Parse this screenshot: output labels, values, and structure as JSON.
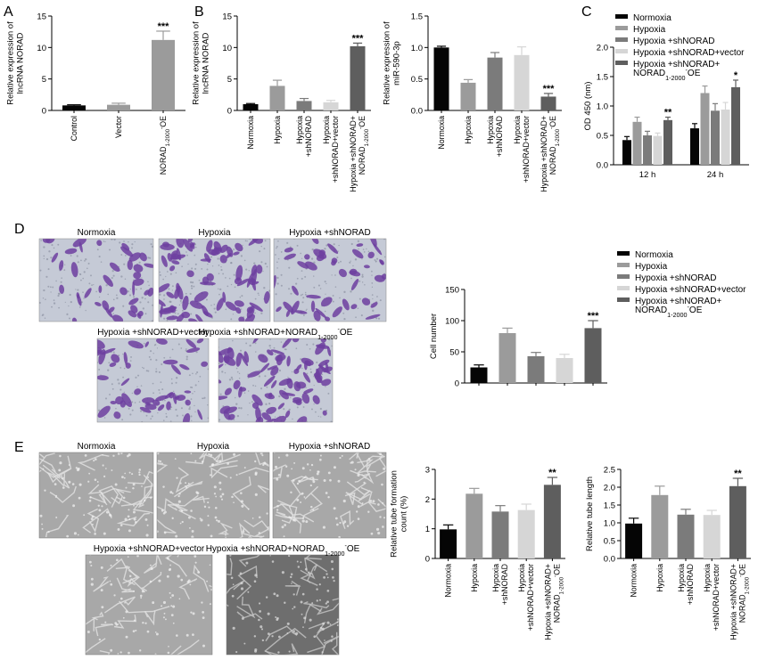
{
  "panels": {
    "A": "A",
    "B": "B",
    "C": "C",
    "D": "D",
    "E": "E"
  },
  "colors": {
    "normoxia": "#050505",
    "hypoxia": "#9b9b9b",
    "shnorad": "#7b7b7b",
    "shvector": "#d6d6d6",
    "oe": "#5e5e5e",
    "crystal_violet": "#6d3fa0",
    "membrane_bg": "#c5cad6",
    "tube_bg": "#a8a8a8"
  },
  "images": {
    "d": [
      "Normoxia",
      "Hypoxia",
      "Hypoxia +shNORAD",
      "Hypoxia +shNORAD+vector",
      "Hypoxia +shNORAD+NORAD1-2000-OE"
    ],
    "e": [
      "Normoxia",
      "Hypoxia",
      "Hypoxia +shNORAD",
      "Hypoxia +shNORAD+vector",
      "Hypoxia +shNORAD+NORAD1-2000-OE"
    ]
  },
  "legend": {
    "entries": [
      "Normoxia",
      "Hypoxia",
      "Hypoxia +shNORAD",
      "Hypoxia +shNORAD+vector",
      "Hypoxia +shNORAD+"
    ],
    "entry_line2": "NORAD1-2000-OE"
  },
  "chart_data": [
    {
      "id": "A",
      "type": "bar",
      "ylabel": [
        "Relative expression of",
        "lncRNA NORAD"
      ],
      "ylim": [
        0,
        15
      ],
      "yticks": [
        0,
        5,
        10,
        15
      ],
      "categories": [
        "Control",
        "Vector",
        "NORAD1-2000-OE"
      ],
      "values": [
        0.8,
        0.9,
        11.2
      ],
      "errors": [
        0.1,
        0.25,
        1.4
      ],
      "significance": [
        "",
        "",
        "***"
      ],
      "color_keys": [
        "normoxia",
        "hypoxia",
        "hypoxia"
      ]
    },
    {
      "id": "B1",
      "type": "bar",
      "ylabel": [
        "Relative expression of",
        "lncRNA NORAD"
      ],
      "ylim": [
        0,
        15
      ],
      "yticks": [
        0,
        5,
        10,
        15
      ],
      "categories": [
        "Normoxia",
        "Hypoxia",
        "Hypoxia +shNORAD",
        "Hypoxia +shNORAD+vector",
        "Hypoxia +shNORAD+ NORAD1-2000-OE"
      ],
      "values": [
        1.0,
        3.9,
        1.5,
        1.3,
        10.2
      ],
      "errors": [
        0.1,
        0.9,
        0.4,
        0.3,
        0.5
      ],
      "significance": [
        "",
        "",
        "",
        "",
        "***"
      ],
      "color_keys": [
        "normoxia",
        "hypoxia",
        "shnorad",
        "shvector",
        "oe"
      ]
    },
    {
      "id": "B2",
      "type": "bar",
      "ylabel": [
        "Relative expression of",
        "miR-590-3p"
      ],
      "ylim": [
        0,
        1.5
      ],
      "yticks": [
        "0.0",
        "0.5",
        "1.0",
        "1.5"
      ],
      "categories": [
        "Normoxia",
        "Hypoxia",
        "Hypoxia +shNORAD",
        "Hypoxia +shNORAD+vector",
        "Hypoxia +shNORAD+ NORAD1-2000-OE"
      ],
      "values": [
        1.0,
        0.44,
        0.84,
        0.88,
        0.22
      ],
      "errors": [
        0.02,
        0.05,
        0.08,
        0.13,
        0.05
      ],
      "significance": [
        "",
        "",
        "",
        "",
        "***"
      ],
      "color_keys": [
        "normoxia",
        "hypoxia",
        "shnorad",
        "shvector",
        "oe"
      ]
    },
    {
      "id": "C",
      "type": "bar",
      "ylabel": "OD 450 (nm)",
      "ylim": [
        0,
        2.0
      ],
      "yticks": [
        "0.0",
        "0.5",
        "1.0",
        "1.5",
        "2.0"
      ],
      "categories": [
        "12 h",
        "24 h"
      ],
      "series": [
        {
          "name": "Normoxia",
          "values": [
            0.42,
            0.62
          ],
          "errors": [
            0.06,
            0.08
          ],
          "significance": [
            "",
            ""
          ],
          "color_key": "normoxia"
        },
        {
          "name": "Hypoxia",
          "values": [
            0.73,
            1.22
          ],
          "errors": [
            0.08,
            0.12
          ],
          "significance": [
            "",
            ""
          ],
          "color_key": "hypoxia"
        },
        {
          "name": "Hypoxia +shNORAD",
          "values": [
            0.5,
            0.92
          ],
          "errors": [
            0.07,
            0.12
          ],
          "significance": [
            "",
            ""
          ],
          "color_key": "shnorad"
        },
        {
          "name": "Hypoxia +shNORAD+vector",
          "values": [
            0.49,
            0.94
          ],
          "errors": [
            0.05,
            0.12
          ],
          "significance": [
            "",
            ""
          ],
          "color_key": "shvector"
        },
        {
          "name": "Hypoxia +shNORAD+ NORAD1-2000-OE",
          "values": [
            0.76,
            1.32
          ],
          "errors": [
            0.05,
            0.12
          ],
          "significance": [
            "**",
            "*"
          ],
          "color_key": "oe"
        }
      ]
    },
    {
      "id": "D",
      "type": "bar",
      "ylabel": "Cell number",
      "ylim": [
        0,
        150
      ],
      "yticks": [
        0,
        50,
        100,
        150
      ],
      "categories": [
        "Normoxia",
        "Hypoxia",
        "Hypoxia +shNORAD",
        "Hypoxia +shNORAD+vector",
        "Hypoxia +shNORAD+ NORAD1-2000-OE"
      ],
      "values": [
        25,
        80,
        43,
        40,
        88
      ],
      "errors": [
        4,
        8,
        6,
        6,
        12
      ],
      "significance": [
        "",
        "",
        "",
        "",
        "***"
      ],
      "color_keys": [
        "normoxia",
        "hypoxia",
        "shnorad",
        "shvector",
        "oe"
      ]
    },
    {
      "id": "E1",
      "type": "bar",
      "ylabel": [
        "Relative tube formation",
        "count (%)"
      ],
      "ylim": [
        0,
        3
      ],
      "yticks": [
        0,
        1,
        2,
        3
      ],
      "categories": [
        "Normoxia",
        "Hypoxia",
        "Hypoxia +shNORAD",
        "Hypoxia +shNORAD+vector",
        "Hypoxia +shNORAD+ NORAD1-2000-OE"
      ],
      "values": [
        0.98,
        2.18,
        1.58,
        1.63,
        2.48
      ],
      "errors": [
        0.15,
        0.18,
        0.2,
        0.2,
        0.25
      ],
      "significance": [
        "",
        "",
        "",
        "",
        "**"
      ],
      "color_keys": [
        "normoxia",
        "hypoxia",
        "shnorad",
        "shvector",
        "oe"
      ]
    },
    {
      "id": "E2",
      "type": "bar",
      "ylabel": "Relative tube length",
      "ylim": [
        0,
        2.5
      ],
      "yticks": [
        "0.0",
        "0.5",
        "1.0",
        "1.5",
        "2.0",
        "2.5"
      ],
      "categories": [
        "Normoxia",
        "Hypoxia",
        "Hypoxia +shNORAD",
        "Hypoxia +shNORAD+vector",
        "Hypoxia +shNORAD+ NORAD1-2000-OE"
      ],
      "values": [
        0.98,
        1.78,
        1.23,
        1.22,
        2.03
      ],
      "errors": [
        0.15,
        0.25,
        0.15,
        0.13,
        0.22
      ],
      "significance": [
        "",
        "",
        "",
        "",
        "**"
      ],
      "color_keys": [
        "normoxia",
        "hypoxia",
        "shnorad",
        "shvector",
        "oe"
      ]
    }
  ]
}
